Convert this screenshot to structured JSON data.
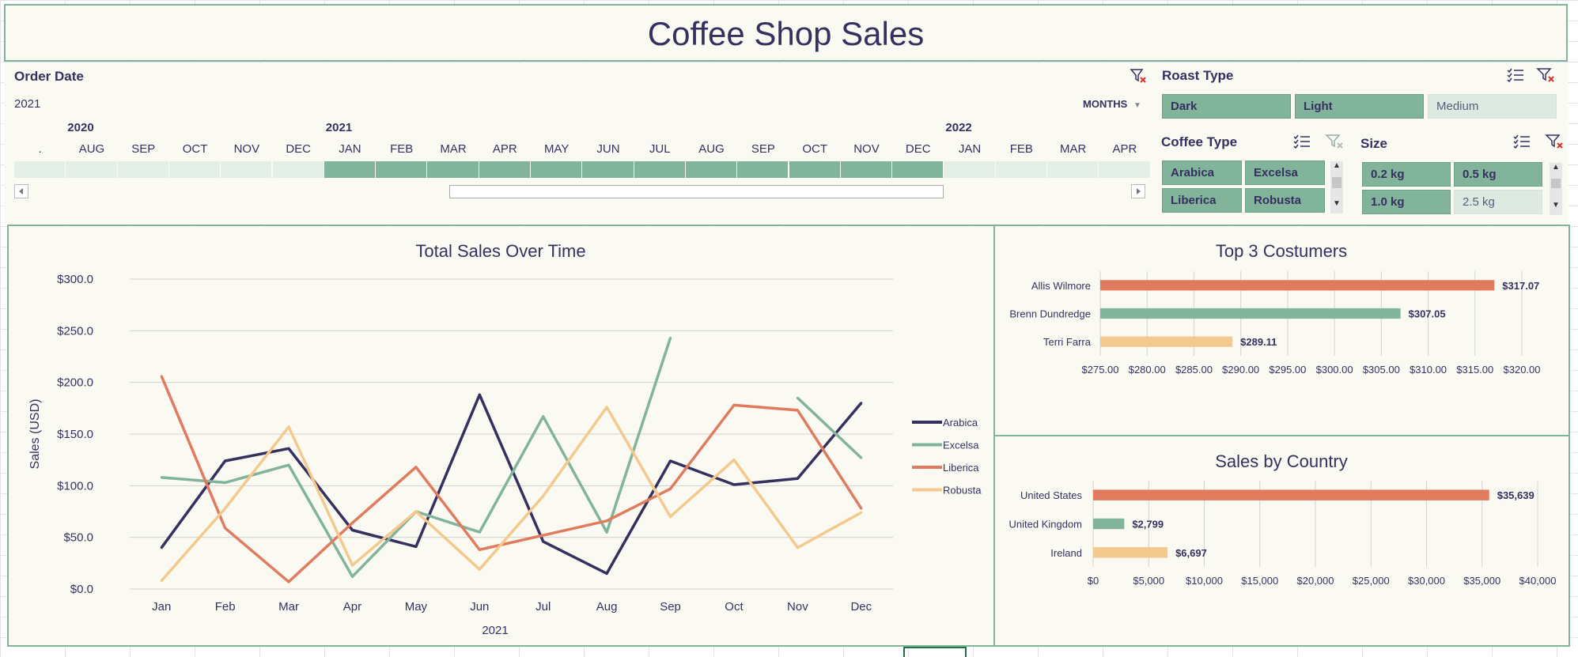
{
  "title": "Coffee Shop Sales",
  "order_date": {
    "title": "Order Date",
    "selection": "2021",
    "level": "MONTHS",
    "years": [
      {
        "label": "2020",
        "col": 1
      },
      {
        "label": "2021",
        "col": 6
      },
      {
        "label": "2022",
        "col": 18
      }
    ],
    "months": [
      ".",
      "AUG",
      "SEP",
      "OCT",
      "NOV",
      "DEC",
      "JAN",
      "FEB",
      "MAR",
      "APR",
      "MAY",
      "JUN",
      "JUL",
      "AUG",
      "SEP",
      "OCT",
      "NOV",
      "DEC",
      "JAN",
      "FEB",
      "MAR",
      "APR"
    ],
    "selected_from": 6,
    "selected_to": 17
  },
  "roast_type": {
    "title": "Roast Type",
    "items": [
      {
        "label": "Dark",
        "selected": true
      },
      {
        "label": "Light",
        "selected": true
      },
      {
        "label": "Medium",
        "selected": false
      }
    ]
  },
  "coffee_type": {
    "title": "Coffee Type",
    "items": [
      {
        "label": "Arabica",
        "selected": true
      },
      {
        "label": "Excelsa",
        "selected": true
      },
      {
        "label": "Liberica",
        "selected": true
      },
      {
        "label": "Robusta",
        "selected": true
      }
    ]
  },
  "size": {
    "title": "Size",
    "items": [
      {
        "label": "0.2 kg",
        "selected": true
      },
      {
        "label": "0.5 kg",
        "selected": true
      },
      {
        "label": "1.0 kg",
        "selected": true
      },
      {
        "label": "2.5 kg",
        "selected": false
      }
    ]
  },
  "colors": {
    "arabica": "#35305f",
    "excelsa": "#82b49b",
    "liberica": "#e07b5f",
    "robusta": "#f3c98e",
    "panel_border": "#7fb39a",
    "panel_bg": "#fbfaf2"
  },
  "icons": {
    "clear_filter": "clear-filter-icon",
    "multi_select": "multi-select-icon",
    "scroll_left": "scroll-left-icon",
    "scroll_right": "scroll-right-icon"
  },
  "chart_data": [
    {
      "type": "line",
      "title": "Total Sales Over Time",
      "xlabel": "2021",
      "ylabel": "Sales (USD)",
      "categories": [
        "Jan",
        "Feb",
        "Mar",
        "Apr",
        "May",
        "Jun",
        "Jul",
        "Aug",
        "Sep",
        "Oct",
        "Nov",
        "Dec"
      ],
      "ylim": [
        0,
        300
      ],
      "yticks": [
        0,
        50,
        100,
        150,
        200,
        250,
        300
      ],
      "ytick_labels": [
        "$0.0",
        "$50.0",
        "$100.0",
        "$150.0",
        "$200.0",
        "$250.0",
        "$300.0"
      ],
      "legend": "right",
      "grid": true,
      "series": [
        {
          "name": "Arabica",
          "color": "#35305f",
          "values": [
            40,
            124,
            136,
            57,
            41,
            188,
            46,
            15,
            124,
            101,
            107,
            180
          ]
        },
        {
          "name": "Excelsa",
          "color": "#82b49b",
          "values": [
            108,
            103,
            120,
            12,
            75,
            55,
            167,
            55,
            243,
            null,
            185,
            127
          ]
        },
        {
          "name": "Liberica",
          "color": "#e07b5f",
          "values": [
            206,
            59,
            7,
            64,
            118,
            38,
            52,
            66,
            97,
            178,
            173,
            78
          ]
        },
        {
          "name": "Robusta",
          "color": "#f3c98e",
          "values": [
            8,
            78,
            157,
            23,
            75,
            19,
            90,
            176,
            70,
            125,
            40,
            74
          ]
        }
      ]
    },
    {
      "type": "bar",
      "orientation": "horizontal",
      "title": "Top 3 Costumers",
      "categories": [
        "Allis Wilmore",
        "Brenn Dundredge",
        "Terri Farra"
      ],
      "values": [
        317.07,
        307.05,
        289.11
      ],
      "data_labels": [
        "$317.07",
        "$307.05",
        "$289.11"
      ],
      "colors": [
        "#e07b5f",
        "#82b49b",
        "#f3c98e"
      ],
      "xlim": [
        275,
        320
      ],
      "xticks": [
        275,
        280,
        285,
        290,
        295,
        300,
        305,
        310,
        315,
        320
      ],
      "xtick_labels": [
        "$275.00",
        "$280.00",
        "$285.00",
        "$290.00",
        "$295.00",
        "$300.00",
        "$305.00",
        "$310.00",
        "$315.00",
        "$320.00"
      ],
      "grid": true
    },
    {
      "type": "bar",
      "orientation": "horizontal",
      "title": "Sales by Country",
      "categories": [
        "United States",
        "United Kingdom",
        "Ireland"
      ],
      "values": [
        35639,
        2799,
        6697
      ],
      "data_labels": [
        "$35,639",
        "$2,799",
        "$6,697"
      ],
      "colors": [
        "#e07b5f",
        "#82b49b",
        "#f3c98e"
      ],
      "xlim": [
        0,
        40000
      ],
      "xticks": [
        0,
        5000,
        10000,
        15000,
        20000,
        25000,
        30000,
        35000,
        40000
      ],
      "xtick_labels": [
        "$0",
        "$5,000",
        "$10,000",
        "$15,000",
        "$20,000",
        "$25,000",
        "$30,000",
        "$35,000",
        "$40,000"
      ],
      "grid": true
    }
  ]
}
